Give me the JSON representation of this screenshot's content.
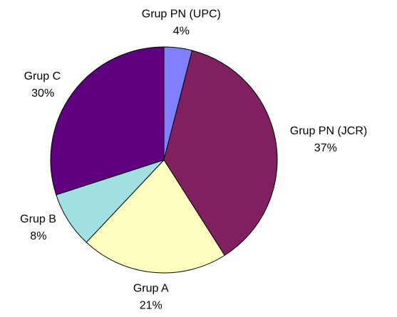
{
  "chart_data": {
    "type": "pie",
    "categories": [
      "Grup PN (UPC)",
      "Grup PN (JCR)",
      "Grup A",
      "Grup B",
      "Grup C"
    ],
    "values": [
      4,
      37,
      21,
      8,
      30
    ],
    "value_labels": [
      "4%",
      "37%",
      "21%",
      "8%",
      "30%"
    ],
    "colors": [
      "#8080ff",
      "#802060",
      "#ffffc0",
      "#a0e0e0",
      "#600080"
    ]
  }
}
